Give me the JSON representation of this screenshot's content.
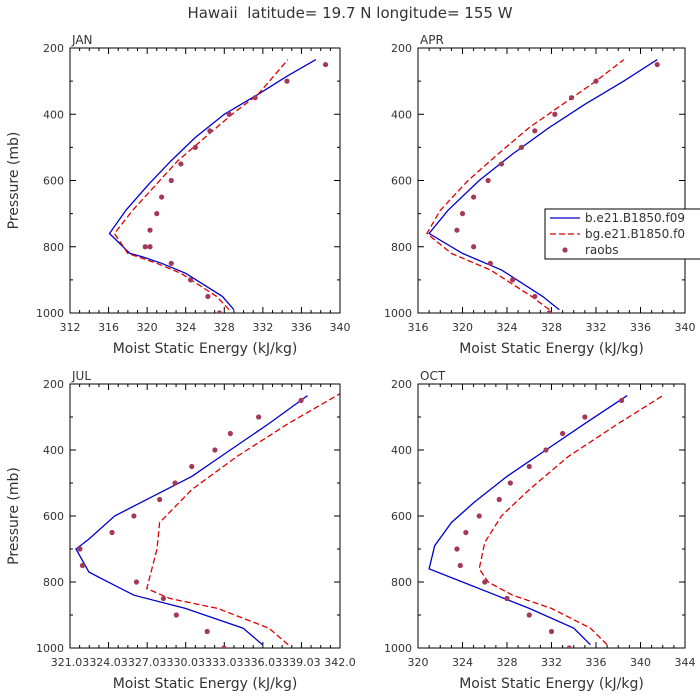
{
  "figure_title": "Hawaii  latitude= 19.7 N longitude= 155 W",
  "colors": {
    "model1": "#0000cc",
    "model2": "#dd0000",
    "obs": "#a3385a",
    "text": "#333333"
  },
  "chart_data": [
    {
      "type": "line",
      "panel_label": "JAN",
      "xlabel": "Moist Static Energy (kJ/kg)",
      "ylabel": "Pressure (mb)",
      "xlim": [
        312,
        340
      ],
      "ylim": [
        1000,
        200
      ],
      "y_inverted": true,
      "xticks": [
        "312",
        "316",
        "320",
        "324",
        "328",
        "332",
        "336",
        "340"
      ],
      "yticks": [
        "200",
        "400",
        "600",
        "800",
        "1000"
      ],
      "series": [
        {
          "style": "solid",
          "x": [
            329,
            327.8,
            324,
            321.5,
            319.5,
            318.2,
            316.1,
            317.8,
            320.2,
            322.5,
            325,
            328,
            331.5,
            334.5,
            337.5
          ],
          "y": [
            990,
            950,
            880,
            850,
            830,
            820,
            760,
            690,
            610,
            540,
            470,
            400,
            340,
            285,
            235
          ]
        },
        {
          "style": "dashed",
          "x": [
            328.5,
            327.2,
            323.5,
            321,
            319,
            318,
            316.6,
            318.5,
            321,
            323.2,
            326,
            328.8,
            331.5,
            334.6
          ],
          "y": [
            990,
            950,
            880,
            850,
            830,
            820,
            760,
            690,
            610,
            540,
            470,
            400,
            340,
            235
          ]
        },
        {
          "style": "dots",
          "x": [
            338.5,
            334.5,
            331.2,
            328.5,
            326.5,
            325,
            323.5,
            322.5,
            321.5,
            321,
            320.3,
            319.8,
            320.3,
            322.5,
            324.5,
            326.3,
            327.5
          ],
          "y": [
            250,
            300,
            350,
            400,
            450,
            500,
            550,
            600,
            650,
            700,
            750,
            800,
            800,
            850,
            900,
            950,
            1000
          ]
        }
      ]
    },
    {
      "type": "line",
      "panel_label": "APR",
      "xlabel": "Moist Static Energy (kJ/kg)",
      "ylabel": "",
      "xlim": [
        316,
        340
      ],
      "ylim": [
        1000,
        200
      ],
      "y_inverted": true,
      "xticks": [
        "316",
        "320",
        "324",
        "328",
        "332",
        "336",
        "340"
      ],
      "yticks": [
        "200",
        "400",
        "600",
        "800",
        "1000"
      ],
      "legend": {
        "placement": "right",
        "entries": [
          "b.e21.B1850.f09",
          "bg.e21.B1850.f0",
          "raobs"
        ]
      },
      "series": [
        {
          "name": "b.e21.B1850.f09",
          "style": "solid",
          "x": [
            328.7,
            327.2,
            323.5,
            320,
            317,
            318.7,
            321.5,
            324.5,
            327.8,
            331,
            334.5,
            337.5
          ],
          "y": [
            990,
            950,
            870,
            820,
            760,
            690,
            600,
            520,
            440,
            370,
            300,
            235
          ]
        },
        {
          "name": "bg.e21.B1850.f0",
          "style": "dashed",
          "x": [
            327.8,
            326.2,
            322.5,
            319,
            316.8,
            318,
            320.5,
            323.2,
            326,
            329,
            332,
            334.5
          ],
          "y": [
            990,
            950,
            870,
            820,
            760,
            690,
            600,
            520,
            440,
            370,
            300,
            235
          ]
        },
        {
          "name": "raobs",
          "style": "dots",
          "x": [
            337.5,
            332,
            329.8,
            328.3,
            326.5,
            325.3,
            323.5,
            322.3,
            321,
            320,
            319.5,
            321,
            322.5,
            324.5,
            326.5,
            327.8
          ],
          "y": [
            250,
            300,
            350,
            400,
            450,
            500,
            550,
            600,
            650,
            700,
            750,
            800,
            850,
            900,
            950,
            1000
          ]
        }
      ]
    },
    {
      "type": "line",
      "panel_label": "JUL",
      "xlabel": "Moist Static Energy (kJ/kg)",
      "ylabel": "Pressure (mb)",
      "xlim": [
        321.03,
        342.03
      ],
      "ylim": [
        1000,
        200
      ],
      "y_inverted": true,
      "xticks": [
        "321.03",
        "324.03",
        "327.03",
        "330.03",
        "333.03",
        "336.03",
        "339.03",
        "342.0"
      ],
      "yticks": [
        "200",
        "400",
        "600",
        "800",
        "1000"
      ],
      "series": [
        {
          "style": "solid",
          "x": [
            336,
            334.5,
            330,
            326,
            322.5,
            321.5,
            322.5,
            324.5,
            327.5,
            330.5,
            333.5,
            336.5,
            339.5
          ],
          "y": [
            990,
            940,
            880,
            840,
            770,
            700,
            670,
            600,
            540,
            480,
            400,
            320,
            235
          ]
        },
        {
          "style": "dashed",
          "x": [
            338,
            336.5,
            332.5,
            328.8,
            327,
            327.8,
            328,
            330.5,
            334,
            338,
            342
          ],
          "y": [
            990,
            940,
            880,
            850,
            820,
            700,
            620,
            520,
            420,
            320,
            230
          ]
        },
        {
          "style": "dots",
          "x": [
            339,
            335.7,
            333.5,
            332.3,
            330.5,
            329.2,
            328,
            326,
            324.3,
            321.8,
            322,
            326.2,
            328.3,
            329.3,
            331.7,
            333
          ],
          "y": [
            250,
            300,
            350,
            400,
            450,
            500,
            550,
            600,
            650,
            700,
            750,
            800,
            850,
            900,
            950,
            1000
          ]
        }
      ]
    },
    {
      "type": "line",
      "panel_label": "OCT",
      "xlabel": "Moist Static Energy (kJ/kg)",
      "ylabel": "",
      "xlim": [
        320,
        344
      ],
      "ylim": [
        1000,
        200
      ],
      "y_inverted": true,
      "xticks": [
        "320",
        "324",
        "328",
        "332",
        "336",
        "340",
        "344"
      ],
      "yticks": [
        "200",
        "400",
        "600",
        "800",
        "1000"
      ],
      "series": [
        {
          "style": "solid",
          "x": [
            335.5,
            334,
            330,
            327,
            324,
            321,
            321.5,
            323,
            325,
            328,
            331.5,
            335,
            338.8
          ],
          "y": [
            990,
            940,
            880,
            840,
            800,
            760,
            690,
            620,
            560,
            480,
            400,
            320,
            235
          ]
        },
        {
          "style": "dashed",
          "x": [
            337,
            335.5,
            332,
            328.5,
            326.3,
            325.5,
            326,
            327.5,
            330,
            333.5,
            338,
            342
          ],
          "y": [
            990,
            940,
            880,
            840,
            800,
            760,
            680,
            600,
            520,
            420,
            320,
            235
          ]
        },
        {
          "style": "dots",
          "x": [
            338.3,
            335,
            333,
            331.5,
            330,
            328.3,
            327.3,
            325.5,
            324.3,
            323.5,
            323.8,
            326,
            328,
            330,
            332,
            333.6
          ],
          "y": [
            250,
            300,
            350,
            400,
            450,
            500,
            550,
            600,
            650,
            700,
            750,
            800,
            850,
            900,
            950,
            1000
          ]
        }
      ]
    }
  ]
}
